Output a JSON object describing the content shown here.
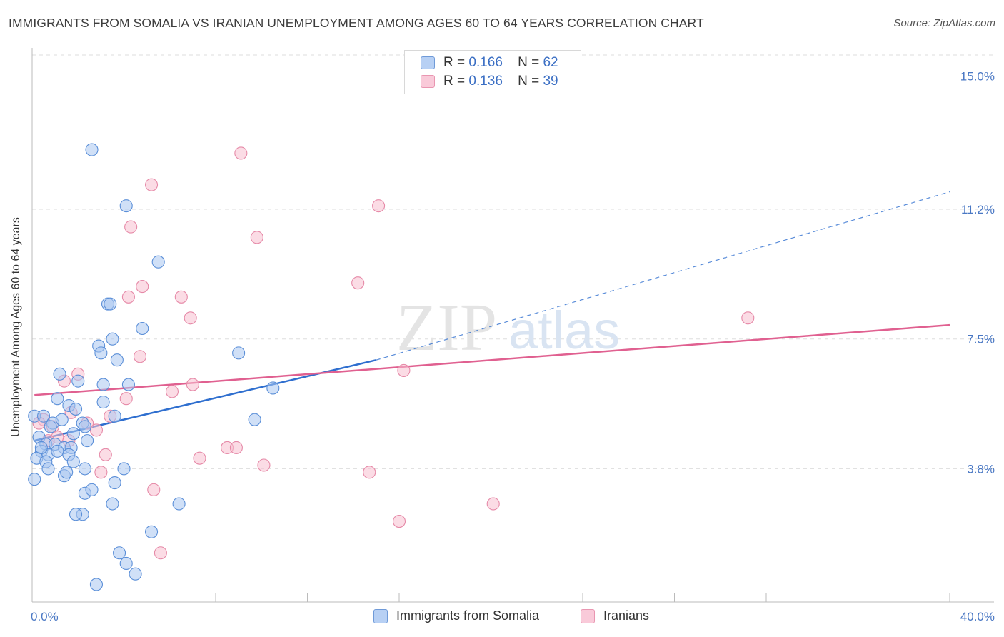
{
  "header": {
    "title": "IMMIGRANTS FROM SOMALIA VS IRANIAN UNEMPLOYMENT AMONG AGES 60 TO 64 YEARS CORRELATION CHART",
    "source": "Source: ZipAtlas.com"
  },
  "watermark": {
    "zip": "ZIP",
    "atlas": "atlas"
  },
  "legend": {
    "somalia": {
      "r_label": "R =",
      "r_value": "0.166",
      "n_label": "N =",
      "n_value": "62"
    },
    "iranians": {
      "r_label": "R =",
      "r_value": "0.136",
      "n_label": "N =",
      "n_value": "39"
    }
  },
  "colors": {
    "somalia_fill": "#a9c6f0",
    "somalia_stroke": "#5b8fd8",
    "somalia_line": "#2f6fcf",
    "iranians_fill": "#f7bfd0",
    "iranians_stroke": "#e68aa8",
    "iranians_line": "#e06090",
    "axis_tick": "#4a78c4",
    "grid": "#dddddd"
  },
  "chart_data": {
    "type": "scatter",
    "title": "IMMIGRANTS FROM SOMALIA VS IRANIAN UNEMPLOYMENT AMONG AGES 60 TO 64 YEARS CORRELATION CHART",
    "xlabel": "",
    "ylabel": "Unemployment Among Ages 60 to 64 years",
    "xlim": [
      0,
      40
    ],
    "ylim": [
      0,
      15.6
    ],
    "x_tick_labels": [
      "0.0%",
      "40.0%"
    ],
    "y_ticks": [
      3.8,
      7.5,
      11.2,
      15.0
    ],
    "y_tick_labels": [
      "3.8%",
      "7.5%",
      "11.2%",
      "15.0%"
    ],
    "grid": true,
    "legend_position": "bottom-center",
    "series": [
      {
        "name": "Immigrants from Somalia",
        "R": 0.166,
        "N": 62,
        "trend": {
          "x0": 0.1,
          "y0": 4.6,
          "x1": 15.0,
          "y1": 6.9
        },
        "trend_extension": {
          "x0": 15.0,
          "y0": 6.9,
          "x1": 40.0,
          "y1": 11.7
        },
        "points": [
          [
            2.6,
            12.9
          ],
          [
            4.1,
            11.3
          ],
          [
            5.5,
            9.7
          ],
          [
            3.3,
            8.5
          ],
          [
            3.4,
            8.5
          ],
          [
            4.8,
            7.8
          ],
          [
            3.5,
            7.5
          ],
          [
            2.9,
            7.3
          ],
          [
            3.0,
            7.1
          ],
          [
            3.7,
            6.9
          ],
          [
            9.0,
            7.1
          ],
          [
            1.2,
            6.5
          ],
          [
            2.0,
            6.3
          ],
          [
            3.1,
            6.2
          ],
          [
            4.2,
            6.2
          ],
          [
            10.5,
            6.1
          ],
          [
            1.1,
            5.8
          ],
          [
            1.6,
            5.6
          ],
          [
            1.9,
            5.5
          ],
          [
            3.1,
            5.7
          ],
          [
            3.6,
            5.3
          ],
          [
            0.1,
            5.3
          ],
          [
            0.5,
            5.3
          ],
          [
            0.9,
            5.1
          ],
          [
            1.3,
            5.2
          ],
          [
            2.2,
            5.1
          ],
          [
            2.3,
            5.0
          ],
          [
            0.8,
            5.0
          ],
          [
            1.8,
            4.8
          ],
          [
            9.7,
            5.2
          ],
          [
            0.3,
            4.7
          ],
          [
            0.6,
            4.5
          ],
          [
            1.0,
            4.5
          ],
          [
            1.4,
            4.4
          ],
          [
            1.7,
            4.4
          ],
          [
            2.4,
            4.6
          ],
          [
            0.4,
            4.3
          ],
          [
            0.7,
            4.2
          ],
          [
            1.1,
            4.3
          ],
          [
            1.6,
            4.2
          ],
          [
            0.2,
            4.1
          ],
          [
            0.6,
            4.0
          ],
          [
            1.8,
            4.0
          ],
          [
            2.3,
            3.8
          ],
          [
            1.4,
            3.6
          ],
          [
            0.1,
            3.5
          ],
          [
            0.7,
            3.8
          ],
          [
            1.5,
            3.7
          ],
          [
            4.0,
            3.8
          ],
          [
            2.3,
            3.1
          ],
          [
            2.6,
            3.2
          ],
          [
            3.6,
            3.4
          ],
          [
            3.5,
            2.8
          ],
          [
            6.4,
            2.8
          ],
          [
            2.2,
            2.5
          ],
          [
            1.9,
            2.5
          ],
          [
            5.2,
            2.0
          ],
          [
            3.8,
            1.4
          ],
          [
            4.1,
            1.1
          ],
          [
            4.5,
            0.8
          ],
          [
            2.8,
            0.5
          ],
          [
            0.4,
            4.4
          ]
        ]
      },
      {
        "name": "Iranians",
        "R": 0.136,
        "N": 39,
        "trend": {
          "x0": 0.1,
          "y0": 5.9,
          "x1": 40.0,
          "y1": 7.9
        },
        "points": [
          [
            9.1,
            12.8
          ],
          [
            5.2,
            11.9
          ],
          [
            15.1,
            11.3
          ],
          [
            4.3,
            10.7
          ],
          [
            9.8,
            10.4
          ],
          [
            14.2,
            9.1
          ],
          [
            4.8,
            9.0
          ],
          [
            4.2,
            8.7
          ],
          [
            6.5,
            8.7
          ],
          [
            6.9,
            8.1
          ],
          [
            31.2,
            8.1
          ],
          [
            4.7,
            7.0
          ],
          [
            16.2,
            6.6
          ],
          [
            2.0,
            6.5
          ],
          [
            1.4,
            6.3
          ],
          [
            7.0,
            6.2
          ],
          [
            6.1,
            6.0
          ],
          [
            4.1,
            5.8
          ],
          [
            0.5,
            5.2
          ],
          [
            1.7,
            5.4
          ],
          [
            2.4,
            5.1
          ],
          [
            3.4,
            5.3
          ],
          [
            0.9,
            5.0
          ],
          [
            1.1,
            4.7
          ],
          [
            0.3,
            5.1
          ],
          [
            2.8,
            4.9
          ],
          [
            0.7,
            4.6
          ],
          [
            1.6,
            4.6
          ],
          [
            8.5,
            4.4
          ],
          [
            8.9,
            4.4
          ],
          [
            3.2,
            4.2
          ],
          [
            7.3,
            4.1
          ],
          [
            10.1,
            3.9
          ],
          [
            14.7,
            3.7
          ],
          [
            3.0,
            3.7
          ],
          [
            5.3,
            3.2
          ],
          [
            20.1,
            2.8
          ],
          [
            16.0,
            2.3
          ],
          [
            5.6,
            1.4
          ]
        ]
      }
    ]
  },
  "bottom_legend": {
    "somalia": "Immigrants from Somalia",
    "iranians": "Iranians"
  }
}
